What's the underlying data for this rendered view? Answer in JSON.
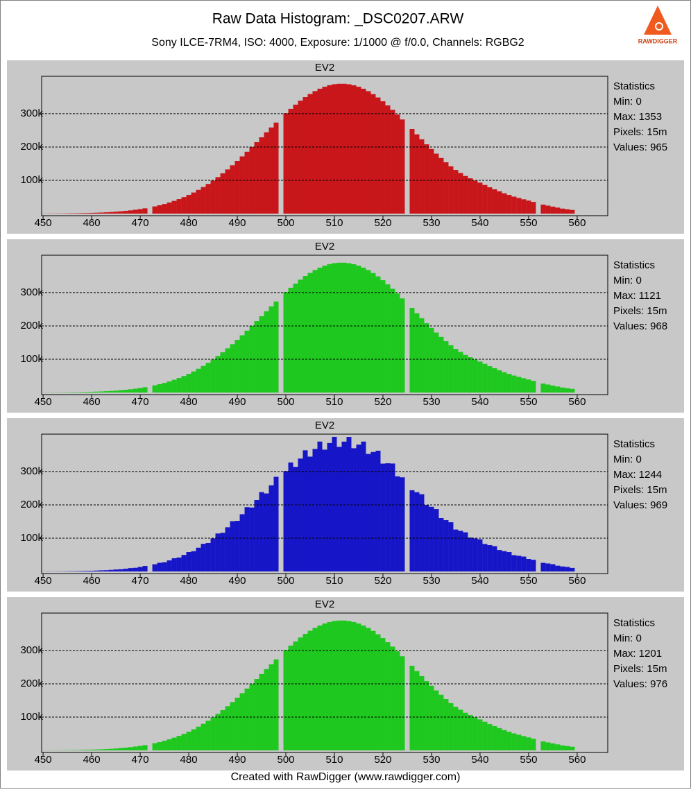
{
  "title": "Raw Data Histogram: _DSC0207.ARW",
  "subtitle": "Sony ILCE-7RM4, ISO: 4000, Exposure: 1/1000 @ f/0.0, Channels: RGBG2",
  "logo": "RAWDIGGER",
  "footer": "Created with RawDigger (www.rawdigger.com)",
  "chart_data": [
    {
      "type": "histogram",
      "title": "EV2",
      "color": "#c8161a",
      "stats": [
        "Statistics",
        "Min: 0",
        "Max: 1353",
        "Pixels: 15m",
        "Values: 965"
      ],
      "bins": [
        449.5,
        450.5,
        451.5,
        452.5,
        453.5,
        454.5,
        455.5,
        456.5,
        457.5,
        458.5,
        459.5,
        460.5,
        461.5,
        462.5,
        463.5,
        464.5,
        465.5,
        466.5,
        467.5,
        468.5,
        469.5,
        470.5,
        471.5,
        472.5,
        473.5,
        474.5,
        475.5,
        476.5,
        477.5,
        478.5,
        479.5,
        480.5,
        481.5,
        482.5,
        483.5,
        484.5,
        485.5,
        486.5,
        487.5,
        488.5,
        489.5,
        490.5,
        491.5,
        492.5,
        493.5,
        494.5,
        495.5,
        496.5,
        497.5,
        498.5,
        499.5,
        500.5,
        501.5,
        502.5,
        503.5,
        504.5,
        505.5,
        506.5,
        507.5,
        508.5,
        509.5,
        510.5,
        511.5,
        512.5,
        513.5,
        514.5,
        515.5,
        516.5,
        517.5,
        518.5,
        519.5,
        520.5,
        521.5,
        522.5,
        523.5,
        524.5,
        525.5,
        526.5,
        527.5,
        528.5,
        529.5,
        530.5,
        531.5,
        532.5,
        533.5,
        534.5,
        535.5,
        536.5,
        537.5,
        538.5,
        539.5,
        540.5,
        541.5,
        542.5,
        543.5,
        544.5,
        545.5,
        546.5,
        547.5,
        548.5,
        549.5,
        550.5,
        551.5,
        552.5,
        553.5,
        554.5,
        555.5,
        556.5,
        557.5,
        558.5,
        559.5
      ],
      "values": [
        200,
        300,
        400,
        500,
        600,
        800,
        1000,
        1200,
        1500,
        1800,
        2200,
        2700,
        3200,
        3900,
        4700,
        5700,
        6900,
        8200,
        9700,
        11500,
        13500,
        15900,
        0,
        21600,
        25000,
        28900,
        33200,
        38200,
        43600,
        49600,
        56100,
        63300,
        71300,
        79800,
        89000,
        99000,
        109600,
        120900,
        132600,
        145100,
        158200,
        171800,
        185700,
        199900,
        214400,
        229100,
        244000,
        258600,
        273300,
        0,
        301400,
        314600,
        327100,
        338900,
        349700,
        359100,
        367800,
        375000,
        380900,
        385500,
        388500,
        389800,
        389800,
        388300,
        385300,
        380800,
        374900,
        367600,
        358700,
        348600,
        337200,
        324800,
        311500,
        297400,
        282600,
        0,
        254000,
        238000,
        223000,
        208000,
        194000,
        180000,
        167000,
        154000,
        142000,
        131000,
        122000,
        113000,
        106000,
        99000,
        93000,
        86000,
        79000,
        73000,
        67000,
        61000,
        56000,
        51000,
        47000,
        43000,
        39000,
        35000,
        0,
        27000,
        24000,
        21000,
        18000,
        15000,
        13000,
        11000
      ],
      "xlim": [
        449.7,
        566.3
      ],
      "xticks": [
        450,
        460,
        470,
        480,
        490,
        500,
        510,
        520,
        530,
        540,
        550,
        560
      ],
      "ylim": [
        0,
        406000
      ],
      "yticks": [
        {
          "value": 100000,
          "label": "100k"
        },
        {
          "value": 200000,
          "label": "200k"
        },
        {
          "value": 300000,
          "label": "300k"
        }
      ],
      "grid": true
    },
    {
      "type": "histogram",
      "title": "EV2",
      "color": "#1ec81e",
      "stats": [
        "Statistics",
        "Min: 0",
        "Max: 1121",
        "Pixels: 15m",
        "Values: 968"
      ],
      "bins": [
        449.5,
        450.5,
        451.5,
        452.5,
        453.5,
        454.5,
        455.5,
        456.5,
        457.5,
        458.5,
        459.5,
        460.5,
        461.5,
        462.5,
        463.5,
        464.5,
        465.5,
        466.5,
        467.5,
        468.5,
        469.5,
        470.5,
        471.5,
        472.5,
        473.5,
        474.5,
        475.5,
        476.5,
        477.5,
        478.5,
        479.5,
        480.5,
        481.5,
        482.5,
        483.5,
        484.5,
        485.5,
        486.5,
        487.5,
        488.5,
        489.5,
        490.5,
        491.5,
        492.5,
        493.5,
        494.5,
        495.5,
        496.5,
        497.5,
        498.5,
        499.5,
        500.5,
        501.5,
        502.5,
        503.5,
        504.5,
        505.5,
        506.5,
        507.5,
        508.5,
        509.5,
        510.5,
        511.5,
        512.5,
        513.5,
        514.5,
        515.5,
        516.5,
        517.5,
        518.5,
        519.5,
        520.5,
        521.5,
        522.5,
        523.5,
        524.5,
        525.5,
        526.5,
        527.5,
        528.5,
        529.5,
        530.5,
        531.5,
        532.5,
        533.5,
        534.5,
        535.5,
        536.5,
        537.5,
        538.5,
        539.5,
        540.5,
        541.5,
        542.5,
        543.5,
        544.5,
        545.5,
        546.5,
        547.5,
        548.5,
        549.5,
        550.5,
        551.5,
        552.5,
        553.5,
        554.5,
        555.5,
        556.5,
        557.5,
        558.5,
        559.5
      ],
      "values": [
        200,
        300,
        400,
        500,
        600,
        800,
        1000,
        1200,
        1500,
        1800,
        2200,
        2700,
        3200,
        3900,
        4700,
        5700,
        6900,
        8200,
        9700,
        11500,
        13500,
        15900,
        0,
        21600,
        25000,
        28900,
        33200,
        38200,
        43600,
        49600,
        56100,
        63300,
        71300,
        79800,
        89000,
        99000,
        109600,
        120900,
        132600,
        145100,
        158200,
        171800,
        185700,
        199900,
        214400,
        229100,
        244000,
        258600,
        273300,
        0,
        301400,
        314600,
        327100,
        338900,
        349700,
        359100,
        367800,
        375000,
        380900,
        385500,
        388500,
        389800,
        389800,
        388300,
        385300,
        380800,
        374900,
        367600,
        358700,
        348600,
        337200,
        324800,
        311500,
        297400,
        282600,
        0,
        254000,
        238000,
        223000,
        208000,
        194000,
        180000,
        167000,
        154000,
        142000,
        131000,
        122000,
        113000,
        106000,
        99000,
        93000,
        86000,
        79000,
        73000,
        67000,
        61000,
        56000,
        51000,
        47000,
        43000,
        39000,
        35000,
        0,
        27000,
        24000,
        21000,
        18000,
        15000,
        13000,
        11000
      ],
      "xlim": [
        449.7,
        566.3
      ],
      "xticks": [
        450,
        460,
        470,
        480,
        490,
        500,
        510,
        520,
        530,
        540,
        550,
        560
      ],
      "ylim": [
        0,
        406000
      ],
      "yticks": [
        {
          "value": 100000,
          "label": "100k"
        },
        {
          "value": 200000,
          "label": "200k"
        },
        {
          "value": 300000,
          "label": "300k"
        }
      ],
      "grid": true
    },
    {
      "type": "histogram",
      "title": "EV2",
      "color": "#1616c8",
      "stats": [
        "Statistics",
        "Min: 0",
        "Max: 1244",
        "Pixels: 15m",
        "Values: 969"
      ],
      "bins": [
        449.5,
        450.5,
        451.5,
        452.5,
        453.5,
        454.5,
        455.5,
        456.5,
        457.5,
        458.5,
        459.5,
        460.5,
        461.5,
        462.5,
        463.5,
        464.5,
        465.5,
        466.5,
        467.5,
        468.5,
        469.5,
        470.5,
        471.5,
        472.5,
        473.5,
        474.5,
        475.5,
        476.5,
        477.5,
        478.5,
        479.5,
        480.5,
        481.5,
        482.5,
        483.5,
        484.5,
        485.5,
        486.5,
        487.5,
        488.5,
        489.5,
        490.5,
        491.5,
        492.5,
        493.5,
        494.5,
        495.5,
        496.5,
        497.5,
        498.5,
        499.5,
        500.5,
        501.5,
        502.5,
        503.5,
        504.5,
        505.5,
        506.5,
        507.5,
        508.5,
        509.5,
        510.5,
        511.5,
        512.5,
        513.5,
        514.5,
        515.5,
        516.5,
        517.5,
        518.5,
        519.5,
        520.5,
        521.5,
        522.5,
        523.5,
        524.5,
        525.5,
        526.5,
        527.5,
        528.5,
        529.5,
        530.5,
        531.5,
        532.5,
        533.5,
        534.5,
        535.5,
        536.5,
        537.5,
        538.5,
        539.5,
        540.5,
        541.5,
        542.5,
        543.5,
        544.5,
        545.5,
        546.5,
        547.5,
        548.5,
        549.5,
        550.5,
        551.5,
        552.5,
        553.5,
        554.5,
        555.5,
        556.5,
        557.5,
        558.5,
        559.5
      ],
      "values": [
        200,
        300,
        400,
        500,
        600,
        800,
        1000,
        1200,
        1500,
        1900,
        2100,
        2700,
        3300,
        3700,
        4700,
        5900,
        6600,
        8200,
        10100,
        11000,
        13500,
        16500,
        0,
        21600,
        26000,
        27700,
        33200,
        39700,
        41900,
        49600,
        58300,
        60800,
        71300,
        83000,
        85400,
        99000,
        114000,
        116100,
        132600,
        150900,
        151900,
        171800,
        193100,
        191900,
        214400,
        238300,
        234200,
        258600,
        284200,
        0,
        301400,
        327200,
        314000,
        338900,
        363700,
        344700,
        367800,
        390000,
        365700,
        385500,
        404000,
        374200,
        389800,
        403800,
        369900,
        380800,
        389900,
        352900,
        358700,
        362500,
        323700,
        324800,
        324000,
        285500,
        282600,
        0,
        243800,
        238000,
        231900,
        199700,
        194000,
        187200,
        160300,
        154000,
        147700,
        125800,
        122000,
        117500,
        101800,
        99000,
        96700,
        82600,
        79000,
        75900,
        64300,
        61000,
        58200,
        49000,
        47000,
        44700,
        37400,
        35000,
        0,
        25900,
        24000,
        21800,
        17300,
        15000,
        13500,
        10600
      ],
      "xlim": [
        449.7,
        566.3
      ],
      "xticks": [
        450,
        460,
        470,
        480,
        490,
        500,
        510,
        520,
        530,
        540,
        550,
        560
      ],
      "ylim": [
        0,
        406000
      ],
      "yticks": [
        {
          "value": 100000,
          "label": "100k"
        },
        {
          "value": 200000,
          "label": "200k"
        },
        {
          "value": 300000,
          "label": "300k"
        }
      ],
      "grid": true
    },
    {
      "type": "histogram",
      "title": "EV2",
      "color": "#1ec81e",
      "stats": [
        "Statistics",
        "Min: 0",
        "Max: 1201",
        "Pixels: 15m",
        "Values: 976"
      ],
      "bins": [
        449.5,
        450.5,
        451.5,
        452.5,
        453.5,
        454.5,
        455.5,
        456.5,
        457.5,
        458.5,
        459.5,
        460.5,
        461.5,
        462.5,
        463.5,
        464.5,
        465.5,
        466.5,
        467.5,
        468.5,
        469.5,
        470.5,
        471.5,
        472.5,
        473.5,
        474.5,
        475.5,
        476.5,
        477.5,
        478.5,
        479.5,
        480.5,
        481.5,
        482.5,
        483.5,
        484.5,
        485.5,
        486.5,
        487.5,
        488.5,
        489.5,
        490.5,
        491.5,
        492.5,
        493.5,
        494.5,
        495.5,
        496.5,
        497.5,
        498.5,
        499.5,
        500.5,
        501.5,
        502.5,
        503.5,
        504.5,
        505.5,
        506.5,
        507.5,
        508.5,
        509.5,
        510.5,
        511.5,
        512.5,
        513.5,
        514.5,
        515.5,
        516.5,
        517.5,
        518.5,
        519.5,
        520.5,
        521.5,
        522.5,
        523.5,
        524.5,
        525.5,
        526.5,
        527.5,
        528.5,
        529.5,
        530.5,
        531.5,
        532.5,
        533.5,
        534.5,
        535.5,
        536.5,
        537.5,
        538.5,
        539.5,
        540.5,
        541.5,
        542.5,
        543.5,
        544.5,
        545.5,
        546.5,
        547.5,
        548.5,
        549.5,
        550.5,
        551.5,
        552.5,
        553.5,
        554.5,
        555.5,
        556.5,
        557.5,
        558.5,
        559.5
      ],
      "values": [
        200,
        300,
        400,
        500,
        600,
        800,
        1000,
        1200,
        1500,
        1800,
        2200,
        2700,
        3200,
        3900,
        4700,
        5700,
        6900,
        8200,
        9700,
        11500,
        13500,
        15900,
        0,
        21600,
        25000,
        28900,
        33200,
        38200,
        43600,
        49600,
        56100,
        63300,
        71300,
        79800,
        89000,
        99000,
        109600,
        120900,
        132600,
        145100,
        158200,
        171800,
        185700,
        199900,
        214400,
        229100,
        244000,
        258600,
        273300,
        0,
        301400,
        314600,
        327100,
        338900,
        349700,
        359100,
        367800,
        375000,
        380900,
        385500,
        388500,
        389800,
        389800,
        388300,
        385300,
        380800,
        374900,
        367600,
        358700,
        348600,
        337200,
        324800,
        311500,
        297400,
        282600,
        0,
        254000,
        238000,
        223000,
        208000,
        194000,
        180000,
        167000,
        154000,
        142000,
        131000,
        122000,
        113000,
        106000,
        99000,
        93000,
        86000,
        79000,
        73000,
        67000,
        61000,
        56000,
        51000,
        47000,
        43000,
        39000,
        35000,
        0,
        27000,
        24000,
        21000,
        18000,
        15000,
        13000,
        11000
      ],
      "xlim": [
        449.7,
        566.3
      ],
      "xticks": [
        450,
        460,
        470,
        480,
        490,
        500,
        510,
        520,
        530,
        540,
        550,
        560
      ],
      "ylim": [
        0,
        406000
      ],
      "yticks": [
        {
          "value": 100000,
          "label": "100k"
        },
        {
          "value": 200000,
          "label": "200k"
        },
        {
          "value": 300000,
          "label": "300k"
        }
      ],
      "grid": true
    }
  ]
}
